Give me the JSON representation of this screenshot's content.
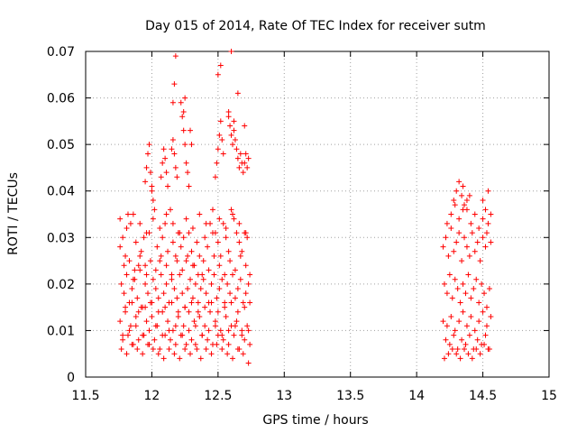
{
  "chart_data": {
    "type": "scatter",
    "title": "Day 015 of 2014, Rate Of TEC Index for receiver sutm",
    "xlabel": "GPS time / hours",
    "ylabel": "ROTI / TECUs",
    "xlim": [
      11.5,
      15
    ],
    "ylim": [
      0,
      0.07
    ],
    "grid": true,
    "marker": "+",
    "color": "#ff0000",
    "x_ticks": [
      11.5,
      12,
      12.5,
      13,
      13.5,
      14,
      14.5,
      15
    ],
    "x_tick_labels": [
      "11.5",
      "12",
      "12.5",
      "13",
      "13.5",
      "14",
      "14.5",
      "15"
    ],
    "y_ticks": [
      0,
      0.01,
      0.02,
      0.03,
      0.04,
      0.05,
      0.06,
      0.07
    ],
    "y_tick_labels": [
      "0",
      "0.01",
      "0.02",
      "0.03",
      "0.04",
      "0.05",
      "0.06",
      "0.07"
    ],
    "series": [
      {
        "name": "ROTI",
        "x": [
          11.76,
          11.78,
          11.8,
          11.82,
          11.84,
          11.86,
          11.88,
          11.9,
          11.92,
          11.94,
          11.96,
          11.98,
          12.0,
          12.02,
          12.04,
          12.06,
          12.08,
          12.1,
          12.12,
          12.14,
          12.16,
          12.18,
          12.2,
          12.22,
          12.24,
          12.26,
          12.28,
          12.3,
          12.32,
          12.34,
          12.36,
          12.38,
          12.4,
          12.42,
          12.44,
          12.46,
          12.48,
          12.5,
          12.52,
          12.54,
          12.56,
          12.58,
          12.6,
          12.62,
          12.64,
          12.66,
          12.68,
          12.7,
          12.72,
          12.74,
          11.77,
          11.79,
          11.81,
          11.83,
          11.85,
          11.87,
          11.89,
          11.91,
          11.93,
          11.95,
          11.97,
          11.99,
          12.01,
          12.03,
          12.05,
          12.07,
          12.09,
          12.11,
          12.13,
          12.15,
          12.17,
          12.19,
          12.21,
          12.23,
          12.25,
          12.27,
          12.29,
          12.31,
          12.33,
          12.35,
          12.37,
          12.39,
          12.41,
          12.43,
          12.45,
          12.47,
          12.49,
          12.51,
          12.53,
          12.55,
          12.57,
          12.59,
          12.61,
          12.63,
          12.65,
          12.67,
          12.69,
          12.71,
          12.73,
          11.76,
          11.8,
          11.84,
          11.88,
          11.92,
          11.96,
          12.0,
          12.04,
          12.08,
          12.12,
          12.16,
          12.2,
          12.24,
          12.28,
          12.32,
          12.36,
          12.4,
          12.44,
          12.48,
          12.52,
          12.56,
          12.6,
          12.64,
          12.68,
          12.72,
          11.78,
          11.82,
          11.86,
          11.9,
          11.94,
          11.98,
          12.02,
          12.06,
          12.1,
          12.14,
          12.18,
          12.22,
          12.26,
          12.3,
          12.34,
          12.38,
          12.42,
          12.46,
          12.5,
          12.54,
          12.58,
          12.62,
          12.66,
          12.7,
          12.74,
          11.77,
          11.81,
          11.85,
          11.89,
          11.93,
          11.97,
          12.01,
          12.05,
          12.09,
          12.13,
          12.17,
          12.21,
          12.25,
          12.29,
          12.33,
          12.37,
          12.41,
          12.45,
          12.49,
          12.53,
          12.57,
          12.61,
          12.65,
          12.69,
          12.73,
          11.79,
          11.83,
          11.87,
          11.91,
          11.95,
          11.99,
          12.03,
          12.07,
          12.11,
          12.15,
          12.19,
          12.23,
          12.27,
          12.31,
          12.35,
          12.39,
          12.43,
          12.47,
          12.51,
          12.55,
          12.59,
          12.63,
          12.67,
          12.71,
          11.76,
          11.81,
          11.86,
          11.91,
          11.96,
          12.01,
          12.06,
          12.11,
          12.16,
          12.21,
          12.26,
          12.31,
          12.36,
          12.41,
          12.46,
          12.51,
          12.56,
          12.61,
          12.66,
          12.71,
          11.78,
          11.83,
          11.88,
          11.93,
          11.98,
          12.03,
          12.08,
          12.13,
          12.18,
          12.23,
          12.28,
          12.33,
          12.38,
          12.43,
          12.48,
          12.53,
          12.58,
          12.63,
          12.68,
          12.73,
          11.8,
          11.85,
          11.9,
          11.95,
          12.0,
          12.05,
          12.1,
          12.15,
          12.2,
          12.25,
          12.3,
          12.35,
          12.4,
          12.45,
          12.5,
          12.55,
          12.6,
          12.65,
          12.7,
          12.74,
          11.95,
          11.96,
          11.97,
          11.98,
          11.99,
          12.0,
          12.01,
          12.07,
          12.08,
          12.09,
          12.1,
          12.11,
          12.12,
          12.15,
          12.16,
          12.17,
          12.18,
          12.19,
          12.22,
          12.23,
          12.24,
          12.25,
          12.26,
          12.27,
          12.28,
          12.48,
          12.49,
          12.5,
          12.51,
          12.52,
          12.53,
          12.54,
          12.58,
          12.59,
          12.6,
          12.61,
          12.62,
          12.63,
          12.64,
          12.65,
          12.66,
          12.67,
          12.68,
          12.69,
          12.7,
          12.71,
          12.72,
          12.73,
          12.16,
          12.17,
          12.18,
          12.24,
          12.25,
          12.29,
          12.3,
          12.5,
          12.52,
          12.58,
          12.6,
          12.62,
          12.65,
          12.7,
          14.2,
          14.22,
          14.24,
          14.26,
          14.28,
          14.3,
          14.32,
          14.34,
          14.36,
          14.38,
          14.4,
          14.42,
          14.44,
          14.46,
          14.48,
          14.5,
          14.52,
          14.54,
          14.56,
          14.21,
          14.23,
          14.25,
          14.27,
          14.29,
          14.31,
          14.33,
          14.35,
          14.37,
          14.39,
          14.41,
          14.43,
          14.45,
          14.47,
          14.49,
          14.51,
          14.53,
          14.55,
          14.2,
          14.23,
          14.26,
          14.29,
          14.32,
          14.35,
          14.38,
          14.41,
          14.44,
          14.47,
          14.5,
          14.53,
          14.56,
          14.22,
          14.25,
          14.28,
          14.31,
          14.34,
          14.37,
          14.4,
          14.43,
          14.46,
          14.49,
          14.52,
          14.55,
          14.21,
          14.24,
          14.27,
          14.3,
          14.33,
          14.36,
          14.39,
          14.42,
          14.45,
          14.48,
          14.51,
          14.54,
          14.23,
          14.26,
          14.29,
          14.32,
          14.35,
          14.38,
          14.41,
          14.44,
          14.47,
          14.5,
          14.53,
          14.56,
          14.28,
          14.3,
          14.32,
          14.34,
          14.35,
          14.36,
          14.38,
          14.4,
          14.5,
          14.52,
          14.54
        ],
        "y": [
          0.028,
          0.03,
          0.026,
          0.035,
          0.033,
          0.021,
          0.029,
          0.024,
          0.027,
          0.03,
          0.022,
          0.031,
          0.041,
          0.036,
          0.028,
          0.025,
          0.03,
          0.033,
          0.027,
          0.036,
          0.029,
          0.026,
          0.031,
          0.028,
          0.03,
          0.025,
          0.031,
          0.027,
          0.024,
          0.029,
          0.026,
          0.022,
          0.03,
          0.028,
          0.033,
          0.036,
          0.031,
          0.029,
          0.026,
          0.033,
          0.03,
          0.027,
          0.036,
          0.034,
          0.031,
          0.029,
          0.027,
          0.031,
          0.03,
          0.022,
          0.02,
          0.018,
          0.022,
          0.016,
          0.019,
          0.021,
          0.017,
          0.023,
          0.015,
          0.02,
          0.018,
          0.016,
          0.021,
          0.019,
          0.017,
          0.022,
          0.018,
          0.02,
          0.016,
          0.021,
          0.019,
          0.017,
          0.022,
          0.018,
          0.015,
          0.019,
          0.021,
          0.017,
          0.02,
          0.016,
          0.019,
          0.021,
          0.018,
          0.016,
          0.02,
          0.022,
          0.017,
          0.019,
          0.021,
          0.016,
          0.02,
          0.018,
          0.022,
          0.017,
          0.019,
          0.021,
          0.016,
          0.018,
          0.02,
          0.012,
          0.014,
          0.011,
          0.013,
          0.015,
          0.012,
          0.013,
          0.011,
          0.014,
          0.012,
          0.01,
          0.013,
          0.011,
          0.014,
          0.012,
          0.013,
          0.011,
          0.014,
          0.012,
          0.01,
          0.013,
          0.011,
          0.012,
          0.01,
          0.011,
          0.008,
          0.009,
          0.007,
          0.008,
          0.009,
          0.007,
          0.008,
          0.006,
          0.009,
          0.008,
          0.007,
          0.009,
          0.007,
          0.008,
          0.006,
          0.009,
          0.008,
          0.007,
          0.009,
          0.008,
          0.007,
          0.009,
          0.006,
          0.008,
          0.007,
          0.006,
          0.005,
          0.007,
          0.006,
          0.005,
          0.007,
          0.006,
          0.005,
          0.004,
          0.006,
          0.005,
          0.004,
          0.006,
          0.005,
          0.007,
          0.004,
          0.006,
          0.005,
          0.007,
          0.006,
          0.005,
          0.004,
          0.006,
          0.005,
          0.003,
          0.024,
          0.025,
          0.023,
          0.026,
          0.024,
          0.025,
          0.023,
          0.026,
          0.024,
          0.022,
          0.025,
          0.023,
          0.026,
          0.024,
          0.022,
          0.025,
          0.023,
          0.026,
          0.024,
          0.022,
          0.025,
          0.023,
          0.026,
          0.024,
          0.034,
          0.032,
          0.035,
          0.033,
          0.031,
          0.034,
          0.032,
          0.035,
          0.033,
          0.031,
          0.034,
          0.032,
          0.035,
          0.033,
          0.031,
          0.034,
          0.032,
          0.035,
          0.033,
          0.031,
          0.009,
          0.01,
          0.011,
          0.009,
          0.01,
          0.011,
          0.009,
          0.01,
          0.011,
          0.009,
          0.01,
          0.011,
          0.009,
          0.01,
          0.011,
          0.009,
          0.01,
          0.011,
          0.009,
          0.01,
          0.015,
          0.016,
          0.014,
          0.015,
          0.016,
          0.014,
          0.015,
          0.016,
          0.014,
          0.015,
          0.016,
          0.014,
          0.015,
          0.016,
          0.014,
          0.015,
          0.016,
          0.014,
          0.015,
          0.016,
          0.042,
          0.045,
          0.048,
          0.05,
          0.044,
          0.04,
          0.038,
          0.043,
          0.046,
          0.049,
          0.047,
          0.044,
          0.041,
          0.049,
          0.051,
          0.048,
          0.045,
          0.043,
          0.059,
          0.056,
          0.053,
          0.05,
          0.046,
          0.044,
          0.041,
          0.043,
          0.046,
          0.049,
          0.052,
          0.055,
          0.051,
          0.048,
          0.056,
          0.054,
          0.052,
          0.05,
          0.053,
          0.051,
          0.049,
          0.047,
          0.045,
          0.048,
          0.046,
          0.044,
          0.046,
          0.048,
          0.045,
          0.047,
          0.059,
          0.063,
          0.069,
          0.057,
          0.06,
          0.053,
          0.05,
          0.065,
          0.067,
          0.057,
          0.07,
          0.055,
          0.061,
          0.054,
          0.028,
          0.03,
          0.026,
          0.032,
          0.027,
          0.029,
          0.031,
          0.025,
          0.03,
          0.028,
          0.026,
          0.031,
          0.027,
          0.029,
          0.025,
          0.03,
          0.028,
          0.033,
          0.029,
          0.02,
          0.018,
          0.022,
          0.017,
          0.021,
          0.019,
          0.016,
          0.02,
          0.018,
          0.022,
          0.017,
          0.019,
          0.021,
          0.016,
          0.02,
          0.018,
          0.015,
          0.019,
          0.012,
          0.011,
          0.013,
          0.01,
          0.012,
          0.014,
          0.011,
          0.013,
          0.01,
          0.012,
          0.014,
          0.011,
          0.013,
          0.008,
          0.007,
          0.009,
          0.006,
          0.008,
          0.007,
          0.009,
          0.006,
          0.008,
          0.007,
          0.009,
          0.006,
          0.004,
          0.005,
          0.006,
          0.005,
          0.004,
          0.006,
          0.005,
          0.004,
          0.006,
          0.005,
          0.007,
          0.006,
          0.033,
          0.035,
          0.037,
          0.034,
          0.036,
          0.038,
          0.033,
          0.035,
          0.032,
          0.034,
          0.031,
          0.035,
          0.038,
          0.04,
          0.042,
          0.039,
          0.041,
          0.037,
          0.036,
          0.039,
          0.038,
          0.036,
          0.04
        ]
      }
    ]
  }
}
